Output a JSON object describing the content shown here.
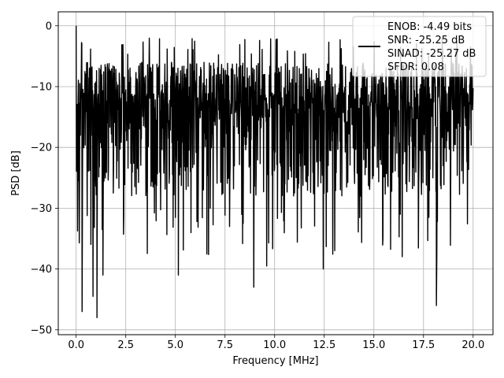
{
  "chart_data": {
    "type": "line",
    "title": "",
    "xlabel": "Frequency [MHz]",
    "ylabel": "PSD [dB]",
    "xlim": [
      -0.9,
      21.0
    ],
    "ylim": [
      -50.8,
      2.3
    ],
    "grid": true,
    "x_ticks": [
      0.0,
      2.5,
      5.0,
      7.5,
      10.0,
      12.5,
      15.0,
      17.5,
      20.0
    ],
    "x_tick_labels": [
      "0.0",
      "2.5",
      "5.0",
      "7.5",
      "10.0",
      "12.5",
      "15.0",
      "17.5",
      "20.0"
    ],
    "y_ticks": [
      0,
      -10,
      -20,
      -30,
      -40,
      -50
    ],
    "y_tick_labels": [
      "0",
      "−10",
      "−20",
      "−30",
      "−40",
      "−50"
    ],
    "legend": {
      "placement": "top-right",
      "entries": [
        "ENOB: -4.49 bits",
        "SNR: -25.25 dB",
        "SINAD: -25.27 dB",
        "SFDR: 0.08"
      ]
    },
    "series": [
      {
        "style": "noise-floor PSD",
        "color": "#000000",
        "x_range": [
          0.0,
          20.0
        ],
        "peak": {
          "x": 0.0,
          "y": 0.0
        },
        "band_upper": -6,
        "band_typical": -16,
        "band_lower": -28,
        "notable_dips": [
          {
            "x": 0.3,
            "y": -47
          },
          {
            "x": 0.85,
            "y": -44.5
          },
          {
            "x": 1.05,
            "y": -48
          },
          {
            "x": 1.35,
            "y": -41
          },
          {
            "x": 5.15,
            "y": -41
          },
          {
            "x": 8.95,
            "y": -43
          },
          {
            "x": 9.6,
            "y": -39.5
          },
          {
            "x": 12.45,
            "y": -40
          },
          {
            "x": 18.15,
            "y": -46
          }
        ]
      }
    ]
  }
}
